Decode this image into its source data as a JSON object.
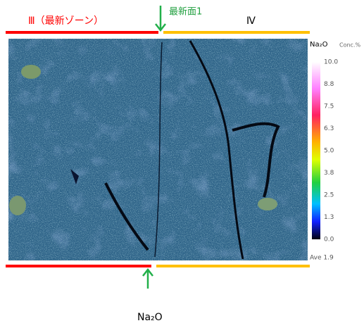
{
  "header": {
    "zone_left": "Ⅲ（最新ゾーン）",
    "marker": "最新面1",
    "zone_right": "Ⅳ"
  },
  "colorbar": {
    "title": "Na₂O",
    "unit": "Conc.%",
    "ticks": [
      "10.0",
      "8.8",
      "7.5",
      "6.3",
      "5.0",
      "3.8",
      "2.5",
      "1.3",
      "0.0"
    ],
    "average": "Ave 1.9"
  },
  "caption": "Na₂O"
}
